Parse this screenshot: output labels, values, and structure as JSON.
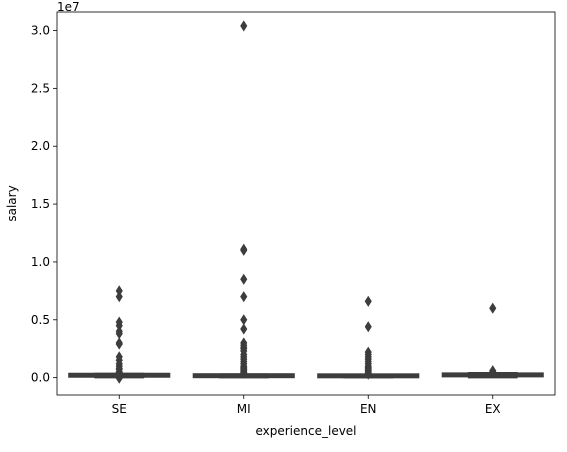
{
  "chart_data": {
    "type": "box",
    "title": "",
    "xlabel": "experience_level",
    "ylabel": "salary",
    "y_offset_label": "1e7",
    "ylim": [
      -1500000,
      31600000
    ],
    "y_ticks": [
      {
        "value": 0,
        "label": "0.0"
      },
      {
        "value": 5000000,
        "label": "0.5"
      },
      {
        "value": 10000000,
        "label": "1.0"
      },
      {
        "value": 15000000,
        "label": "1.5"
      },
      {
        "value": 20000000,
        "label": "2.0"
      },
      {
        "value": 25000000,
        "label": "2.5"
      },
      {
        "value": 30000000,
        "label": "3.0"
      }
    ],
    "categories": [
      "SE",
      "MI",
      "EN",
      "EX"
    ],
    "box_color": "#3d3d3d",
    "grid": false,
    "boxes": [
      {
        "category": "SE",
        "q1": 100000,
        "median": 150000,
        "q3": 220000,
        "whisker_low": 0,
        "whisker_high": 360000,
        "outliers": [
          7500000,
          7000000,
          4800000,
          4500000,
          4000000,
          3800000,
          3000000,
          2900000,
          1800000,
          1500000,
          1200000,
          1000000,
          800000,
          700000,
          500000,
          450000,
          400000,
          380000,
          -50000
        ]
      },
      {
        "category": "MI",
        "q1": 60000,
        "median": 100000,
        "q3": 160000,
        "whisker_low": 0,
        "whisker_high": 300000,
        "outliers": [
          30400000,
          11100000,
          11000000,
          8500000,
          7000000,
          5000000,
          4200000,
          3000000,
          2800000,
          2600000,
          2500000,
          2300000,
          2000000,
          1800000,
          1600000,
          1400000,
          1200000,
          1000000,
          900000,
          800000,
          700000,
          600000,
          500000,
          450000,
          400000
        ]
      },
      {
        "category": "EN",
        "q1": 50000,
        "median": 80000,
        "q3": 140000,
        "whisker_low": 0,
        "whisker_high": 270000,
        "outliers": [
          6600000,
          4400000,
          2200000,
          2000000,
          1800000,
          1600000,
          1400000,
          1200000,
          1000000,
          900000,
          800000,
          700000,
          600000,
          500000,
          400000,
          350000,
          300000
        ]
      },
      {
        "category": "EX",
        "q1": 130000,
        "median": 180000,
        "q3": 260000,
        "whisker_low": 0,
        "whisker_high": 420000,
        "outliers": [
          6000000,
          600000,
          520000
        ]
      }
    ]
  }
}
